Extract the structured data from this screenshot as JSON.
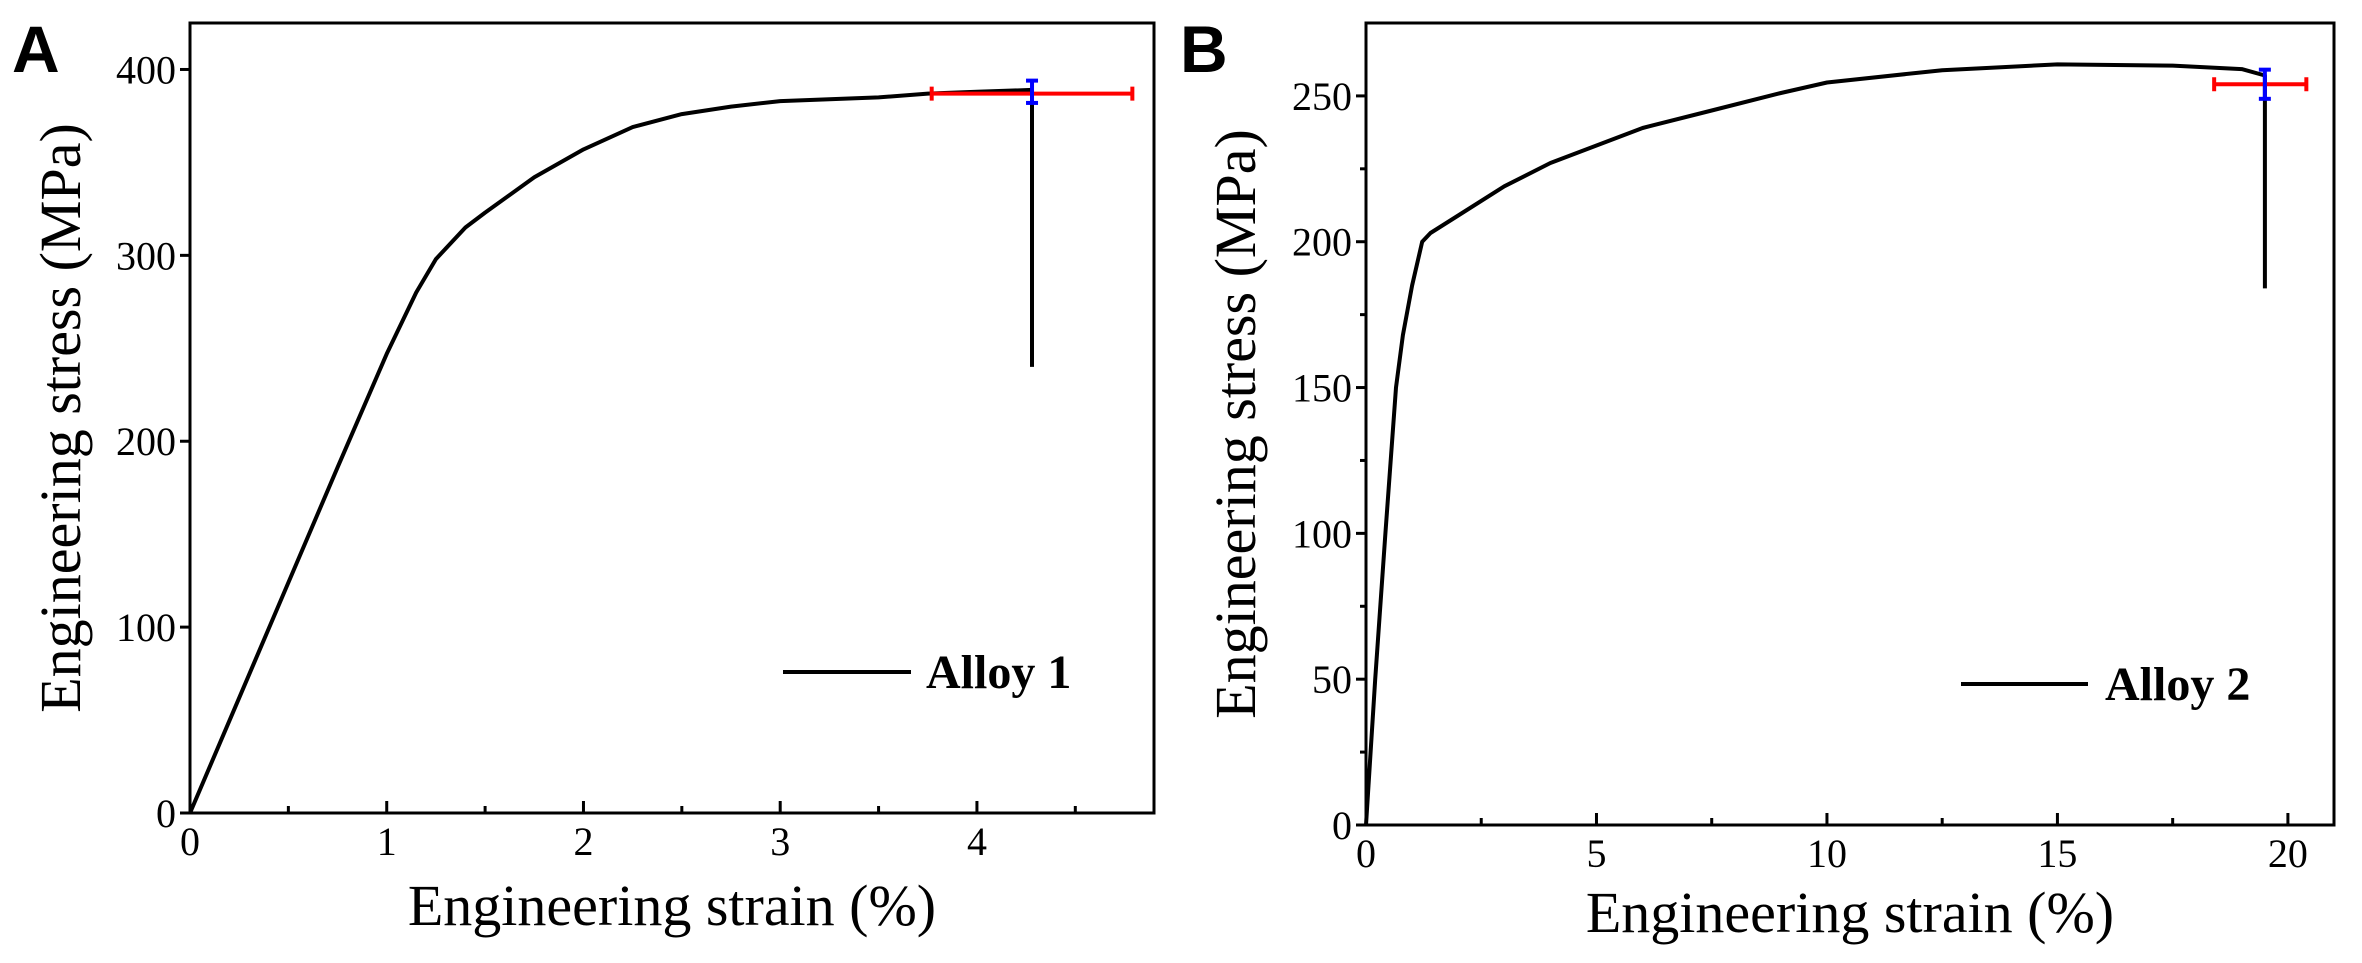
{
  "chart_data": [
    {
      "type": "line",
      "panel_label": "A",
      "xlabel": "Engineering strain (%)",
      "ylabel": "Engineering stress (MPa)",
      "xlim": [
        0,
        4.9
      ],
      "ylim": [
        0,
        425
      ],
      "xticks": [
        0,
        1,
        2,
        3,
        4
      ],
      "yticks": [
        0,
        100,
        200,
        300,
        400
      ],
      "x_minor_step": 0.5,
      "grid": false,
      "legend_position": "bottom-right",
      "series": [
        {
          "name": "Alloy 1",
          "color": "#000000",
          "x": [
            0,
            0.25,
            0.5,
            0.75,
            1.0,
            1.15,
            1.25,
            1.4,
            1.5,
            1.75,
            2.0,
            2.25,
            2.5,
            2.75,
            3.0,
            3.5,
            3.75,
            4.0,
            4.28,
            4.28,
            4.28
          ],
          "y": [
            0,
            62,
            124,
            186,
            247,
            280,
            298,
            315,
            323,
            342,
            357,
            369,
            376,
            380,
            383,
            385,
            387,
            388,
            389,
            360,
            240
          ]
        }
      ],
      "error_bars": {
        "x_error": {
          "y": 387,
          "x_from": 3.77,
          "x_to": 4.79,
          "color": "#ff0000"
        },
        "y_error": {
          "x": 4.28,
          "y_from": 382,
          "y_to": 394,
          "color": "#0000ff"
        }
      }
    },
    {
      "type": "line",
      "panel_label": "B",
      "xlabel": "Engineering strain (%)",
      "ylabel": "Engineering stress (MPa)",
      "xlim": [
        0,
        21
      ],
      "ylim": [
        0,
        275
      ],
      "xticks": [
        0,
        5,
        10,
        15,
        20
      ],
      "yticks": [
        0,
        50,
        100,
        150,
        200,
        250
      ],
      "x_minor_step": 2.5,
      "y_minor_step": 25,
      "grid": false,
      "legend_position": "bottom-right",
      "series": [
        {
          "name": "Alloy 2",
          "color": "#000000",
          "x": [
            0,
            0.2,
            0.42,
            0.65,
            0.8,
            1.0,
            1.22,
            1.4,
            2.0,
            3.0,
            4.0,
            5.0,
            6.0,
            7.5,
            9.0,
            10.0,
            12.5,
            15.0,
            17.5,
            19.0,
            19.5,
            19.5,
            19.5
          ],
          "y": [
            0,
            50,
            100,
            150,
            168,
            185,
            200,
            203,
            209,
            219,
            227,
            233,
            239,
            245,
            251,
            254.6,
            258.8,
            260.8,
            260.4,
            259.2,
            257,
            230,
            184
          ]
        }
      ],
      "error_bars": {
        "x_error": {
          "y": 254,
          "x_from": 18.4,
          "x_to": 20.4,
          "color": "#ff0000"
        },
        "y_error": {
          "x": 19.5,
          "y_from": 249,
          "y_to": 259,
          "color": "#0000ff"
        }
      }
    }
  ]
}
